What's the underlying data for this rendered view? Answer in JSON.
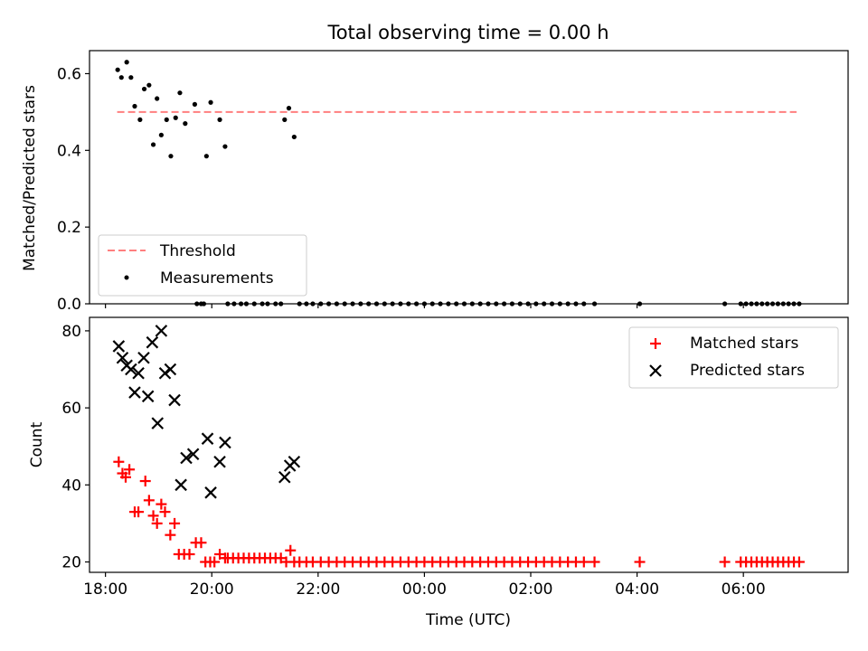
{
  "chart_data": [
    {
      "type": "scatter",
      "title": "Total observing time = 0.00 h",
      "xlabel": "",
      "ylabel": "Matched/Predicted stars",
      "ylim": [
        0,
        0.66
      ],
      "yticks": [
        0.0,
        0.2,
        0.4,
        0.6
      ],
      "xlim": [
        17.7,
        31.97
      ],
      "xticks_labels": [],
      "legend_position": "lower-left",
      "series": [
        {
          "name": "Threshold",
          "kind": "dashed-line",
          "color": "#ff7f7f",
          "x": [
            18.22,
            31.0
          ],
          "y": [
            0.5,
            0.5
          ]
        },
        {
          "name": "Measurements",
          "kind": "dot",
          "color": "#000000",
          "x": [
            18.23,
            18.3,
            18.4,
            18.48,
            18.55,
            18.65,
            18.73,
            18.82,
            18.9,
            18.97,
            19.05,
            19.15,
            19.23,
            19.32,
            19.4,
            19.5,
            19.68,
            19.9,
            19.98,
            20.15,
            20.25,
            21.37,
            21.45,
            21.55,
            19.72,
            19.8,
            19.85,
            20.3,
            20.42,
            20.55,
            20.65,
            20.8,
            20.95,
            21.05,
            21.2,
            21.3,
            21.65,
            21.78,
            21.9,
            22.05,
            22.2,
            22.35,
            22.5,
            22.65,
            22.8,
            22.95,
            23.1,
            23.25,
            23.4,
            23.55,
            23.7,
            23.85,
            24.0,
            24.15,
            24.3,
            24.45,
            24.6,
            24.75,
            24.9,
            25.05,
            25.2,
            25.35,
            25.5,
            25.65,
            25.8,
            25.95,
            26.1,
            26.25,
            26.4,
            26.55,
            26.7,
            26.85,
            27.0,
            27.2,
            28.05,
            29.65,
            29.95,
            30.05,
            30.15,
            30.25,
            30.35,
            30.45,
            30.55,
            30.65,
            30.75,
            30.85,
            30.95,
            31.05
          ],
          "y": [
            0.61,
            0.59,
            0.63,
            0.59,
            0.515,
            0.48,
            0.56,
            0.57,
            0.415,
            0.535,
            0.44,
            0.48,
            0.385,
            0.485,
            0.55,
            0.47,
            0.52,
            0.385,
            0.525,
            0.48,
            0.41,
            0.48,
            0.51,
            0.435,
            0,
            0,
            0,
            0,
            0,
            0,
            0,
            0,
            0,
            0,
            0,
            0,
            0,
            0,
            0,
            0,
            0,
            0,
            0,
            0,
            0,
            0,
            0,
            0,
            0,
            0,
            0,
            0,
            0,
            0,
            0,
            0,
            0,
            0,
            0,
            0,
            0,
            0,
            0,
            0,
            0,
            0,
            0,
            0,
            0,
            0,
            0,
            0,
            0,
            0,
            0,
            0,
            0,
            0,
            0,
            0,
            0,
            0,
            0,
            0,
            0,
            0,
            0,
            0
          ]
        }
      ]
    },
    {
      "type": "scatter",
      "title": "",
      "xlabel": "Time (UTC)",
      "ylabel": "Count",
      "ylim": [
        17.3,
        83.5
      ],
      "yticks": [
        20,
        40,
        60,
        80
      ],
      "xlim": [
        17.7,
        31.97
      ],
      "xticks": [
        18,
        20,
        22,
        24,
        26,
        28,
        30
      ],
      "xticks_labels": [
        "18:00",
        "20:00",
        "22:00",
        "00:00",
        "02:00",
        "04:00",
        "06:00"
      ],
      "legend_position": "upper-right",
      "series": [
        {
          "name": "Matched stars",
          "kind": "plus",
          "color": "#ff0000",
          "x": [
            18.25,
            18.32,
            18.38,
            18.45,
            18.55,
            18.62,
            18.75,
            18.82,
            18.9,
            18.97,
            19.05,
            19.12,
            19.22,
            19.3,
            19.38,
            19.48,
            19.58,
            19.7,
            19.8,
            19.88,
            19.97,
            20.05,
            20.15,
            20.25,
            20.3,
            20.4,
            20.5,
            20.6,
            20.7,
            20.8,
            20.9,
            21.0,
            21.1,
            21.2,
            21.3,
            21.4,
            21.48,
            21.55,
            21.65,
            21.78,
            21.9,
            22.05,
            22.2,
            22.35,
            22.5,
            22.65,
            22.8,
            22.95,
            23.1,
            23.25,
            23.4,
            23.55,
            23.7,
            23.85,
            24.0,
            24.15,
            24.3,
            24.45,
            24.6,
            24.75,
            24.9,
            25.05,
            25.2,
            25.35,
            25.5,
            25.65,
            25.8,
            25.95,
            26.1,
            26.25,
            26.4,
            26.55,
            26.7,
            26.85,
            27.0,
            27.2,
            28.05,
            29.65,
            29.95,
            30.05,
            30.15,
            30.25,
            30.35,
            30.45,
            30.55,
            30.65,
            30.75,
            30.85,
            30.95,
            31.05
          ],
          "y": [
            46,
            43,
            42,
            44,
            33,
            33,
            41,
            36,
            32,
            30,
            35,
            33,
            27,
            30,
            22,
            22,
            22,
            25,
            25,
            20,
            20,
            20,
            22,
            21,
            21,
            21,
            21,
            21,
            21,
            21,
            21,
            21,
            21,
            21,
            21,
            20,
            23,
            20,
            20,
            20,
            20,
            20,
            20,
            20,
            20,
            20,
            20,
            20,
            20,
            20,
            20,
            20,
            20,
            20,
            20,
            20,
            20,
            20,
            20,
            20,
            20,
            20,
            20,
            20,
            20,
            20,
            20,
            20,
            20,
            20,
            20,
            20,
            20,
            20,
            20,
            20,
            20,
            20,
            20,
            20,
            20,
            20,
            20,
            20,
            20,
            20,
            20,
            20,
            20,
            20
          ]
        },
        {
          "name": "Predicted stars",
          "kind": "x",
          "color": "#000000",
          "x": [
            18.25,
            18.32,
            18.4,
            18.48,
            18.55,
            18.62,
            18.72,
            18.8,
            18.88,
            18.98,
            19.05,
            19.12,
            19.22,
            19.3,
            19.42,
            19.52,
            19.65,
            19.92,
            19.98,
            20.15,
            20.25,
            21.37,
            21.47,
            21.55
          ],
          "y": [
            76,
            73,
            71,
            70,
            64,
            69,
            73,
            63,
            77,
            56,
            80,
            69,
            70,
            62,
            40,
            47,
            48,
            52,
            38,
            46,
            51,
            42,
            45,
            46
          ]
        }
      ]
    }
  ]
}
